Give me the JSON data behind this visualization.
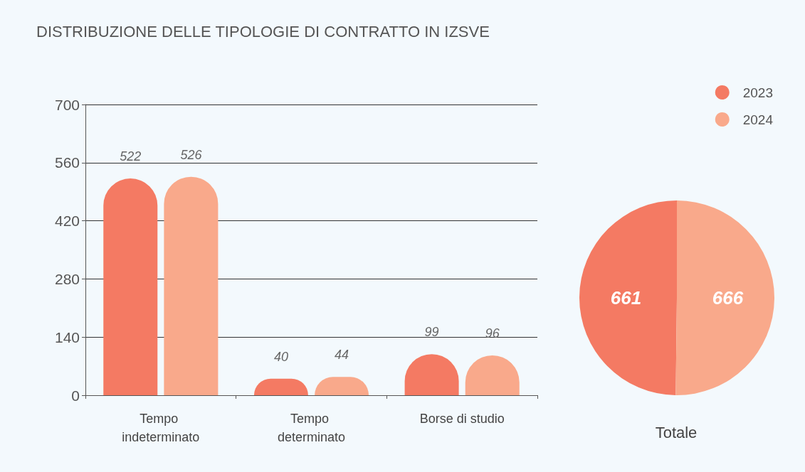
{
  "chart_data": [
    {
      "type": "bar",
      "title": "DISTRIBUZIONE DELLE TIPOLOGIE DI CONTRATTO IN IZSVE",
      "categories": [
        "Tempo indeterminato",
        "Tempo determinato",
        "Borse di studio"
      ],
      "series": [
        {
          "name": "2023",
          "color": "#f47a63",
          "values": [
            522,
            40,
            99
          ]
        },
        {
          "name": "2024",
          "color": "#f9a98b",
          "values": [
            526,
            44,
            96
          ]
        }
      ],
      "ylim": [
        0,
        700
      ],
      "yticks": [
        0,
        140,
        280,
        420,
        560,
        700
      ],
      "grid": "y",
      "legend": "top right",
      "data_labels": true
    },
    {
      "type": "pie",
      "title": "Totale",
      "categories": [
        null,
        null
      ],
      "values": [
        661,
        666
      ],
      "colors": [
        "#f47a63",
        "#f9a98b"
      ],
      "data_labels": true
    }
  ]
}
